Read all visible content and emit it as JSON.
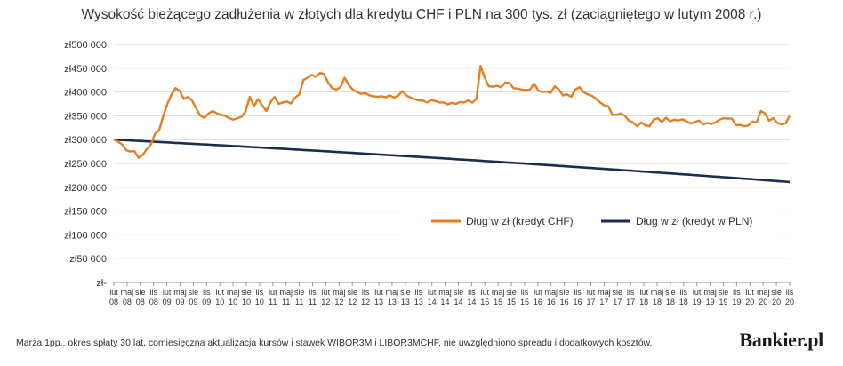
{
  "chart_data": {
    "type": "line",
    "title": "Wysokość bieżącego zadłużenia w złotych dla kredytu CHF i PLN na 300 tys. zł (zaciągniętego w lutym 2008 r.)",
    "xlabel": "",
    "ylabel": "",
    "ylim": [
      0,
      500000
    ],
    "yticks": [
      0,
      50000,
      100000,
      150000,
      200000,
      250000,
      300000,
      350000,
      400000,
      450000,
      500000
    ],
    "ytick_labels": [
      "zł-",
      "zł50 000",
      "zł100 000",
      "zł150 000",
      "zł200 000",
      "zł250 000",
      "zł300 000",
      "zł350 000",
      "zł400 000",
      "zł450 000",
      "zł500 000"
    ],
    "x_ticks": [
      {
        "m": "lut",
        "y": "08"
      },
      {
        "m": "maj",
        "y": "08"
      },
      {
        "m": "sie",
        "y": "08"
      },
      {
        "m": "lis",
        "y": "08"
      },
      {
        "m": "lut",
        "y": "09"
      },
      {
        "m": "maj",
        "y": "09"
      },
      {
        "m": "sie",
        "y": "09"
      },
      {
        "m": "lis",
        "y": "09"
      },
      {
        "m": "lut",
        "y": "10"
      },
      {
        "m": "maj",
        "y": "10"
      },
      {
        "m": "sie",
        "y": "10"
      },
      {
        "m": "lis",
        "y": "10"
      },
      {
        "m": "lut",
        "y": "11"
      },
      {
        "m": "maj",
        "y": "11"
      },
      {
        "m": "sie",
        "y": "11"
      },
      {
        "m": "lis",
        "y": "11"
      },
      {
        "m": "lut",
        "y": "12"
      },
      {
        "m": "maj",
        "y": "12"
      },
      {
        "m": "sie",
        "y": "12"
      },
      {
        "m": "lis",
        "y": "12"
      },
      {
        "m": "lut",
        "y": "13"
      },
      {
        "m": "maj",
        "y": "13"
      },
      {
        "m": "sie",
        "y": "13"
      },
      {
        "m": "lis",
        "y": "13"
      },
      {
        "m": "lut",
        "y": "14"
      },
      {
        "m": "maj",
        "y": "14"
      },
      {
        "m": "sie",
        "y": "14"
      },
      {
        "m": "lis",
        "y": "14"
      },
      {
        "m": "lut",
        "y": "15"
      },
      {
        "m": "maj",
        "y": "15"
      },
      {
        "m": "sie",
        "y": "15"
      },
      {
        "m": "lis",
        "y": "15"
      },
      {
        "m": "lut",
        "y": "16"
      },
      {
        "m": "maj",
        "y": "16"
      },
      {
        "m": "sie",
        "y": "16"
      },
      {
        "m": "lis",
        "y": "16"
      },
      {
        "m": "lut",
        "y": "17"
      },
      {
        "m": "maj",
        "y": "17"
      },
      {
        "m": "sie",
        "y": "17"
      },
      {
        "m": "lis",
        "y": "17"
      },
      {
        "m": "lut",
        "y": "18"
      },
      {
        "m": "maj",
        "y": "18"
      },
      {
        "m": "sie",
        "y": "18"
      },
      {
        "m": "lis",
        "y": "18"
      },
      {
        "m": "lut",
        "y": "19"
      },
      {
        "m": "maj",
        "y": "19"
      },
      {
        "m": "sie",
        "y": "19"
      },
      {
        "m": "lis",
        "y": "19"
      },
      {
        "m": "lut",
        "y": "20"
      },
      {
        "m": "maj",
        "y": "20"
      },
      {
        "m": "sie",
        "y": "20"
      },
      {
        "m": "lis",
        "y": "20"
      }
    ],
    "x_period": "monthly, Feb 2008 - Nov 2020",
    "grid": "horizontal",
    "legend_position": "inside, lower right",
    "series": [
      {
        "name": "Dług w zł (kredyt CHF)",
        "color": "#E87E22",
        "values": [
          300000,
          296000,
          290000,
          278000,
          275000,
          276000,
          262000,
          268000,
          280000,
          290000,
          312000,
          320000,
          350000,
          375000,
          395000,
          408000,
          402000,
          385000,
          390000,
          382000,
          365000,
          350000,
          346000,
          355000,
          360000,
          355000,
          352000,
          350000,
          345000,
          342000,
          345000,
          348000,
          360000,
          390000,
          370000,
          385000,
          372000,
          360000,
          378000,
          390000,
          375000,
          378000,
          380000,
          376000,
          388000,
          395000,
          425000,
          430000,
          436000,
          432000,
          440000,
          438000,
          420000,
          408000,
          405000,
          410000,
          430000,
          415000,
          405000,
          400000,
          396000,
          398000,
          393000,
          391000,
          390000,
          391000,
          389000,
          393000,
          388000,
          392000,
          402000,
          393000,
          388000,
          385000,
          382000,
          382000,
          378000,
          383000,
          381000,
          378000,
          378000,
          374000,
          377000,
          375000,
          379000,
          378000,
          382000,
          378000,
          385000,
          455000,
          430000,
          412000,
          411000,
          413000,
          410000,
          420000,
          419000,
          408000,
          407000,
          405000,
          404000,
          405000,
          418000,
          403000,
          400000,
          401000,
          398000,
          412000,
          405000,
          393000,
          395000,
          390000,
          405000,
          410000,
          400000,
          395000,
          392000,
          386000,
          378000,
          372000,
          370000,
          352000,
          352000,
          355000,
          350000,
          340000,
          336000,
          328000,
          336000,
          330000,
          328000,
          342000,
          345000,
          337000,
          346000,
          338000,
          342000,
          340000,
          343000,
          338000,
          334000,
          337000,
          340000,
          332000,
          335000,
          333000,
          336000,
          342000,
          345000,
          344000,
          344000,
          330000,
          331000,
          328000,
          330000,
          338000,
          336000,
          360000,
          355000,
          340000,
          345000,
          335000,
          332000,
          334000,
          350000
        ]
      },
      {
        "name": "Dług w zł (kredyt w PLN)",
        "color": "#1B2D4F",
        "start": 300000,
        "end": 211000,
        "note": "smooth monotonic decline, monthly"
      }
    ]
  },
  "footnote": "Marża 1pp., okres spłaty 30 lat, comiesięczna aktualizacja kursów i stawek WIBOR3M i LIBOR3MCHF, nie uwzględniono spreadu i dodatkowych kosztów.",
  "logo": "Bankier.pl"
}
